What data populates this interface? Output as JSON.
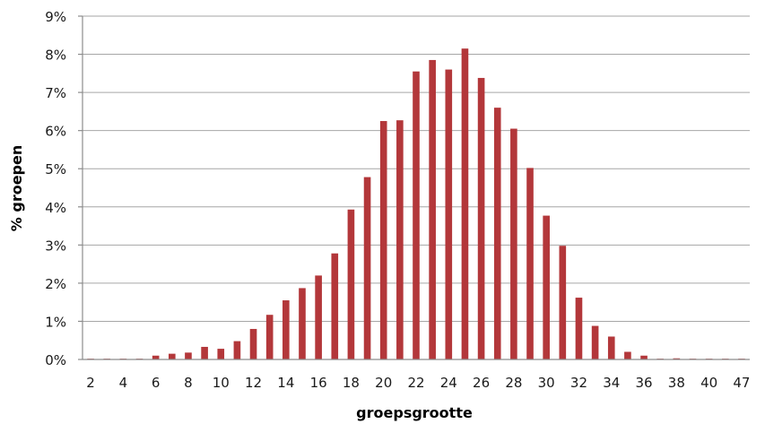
{
  "chart_data": {
    "type": "bar",
    "xlabel": "groepsgrootte",
    "ylabel": "% groepen",
    "ylim": [
      0,
      9
    ],
    "y_ticks": [
      "0%",
      "1%",
      "2%",
      "3%",
      "4%",
      "5%",
      "6%",
      "7%",
      "8%",
      "9%"
    ],
    "x_tick_labels": [
      "2",
      "4",
      "6",
      "8",
      "10",
      "12",
      "14",
      "16",
      "18",
      "20",
      "22",
      "24",
      "26",
      "28",
      "30",
      "32",
      "34",
      "36",
      "38",
      "40",
      "47"
    ],
    "categories": [
      "2",
      "3",
      "4",
      "5",
      "6",
      "7",
      "8",
      "9",
      "10",
      "11",
      "12",
      "13",
      "14",
      "15",
      "16",
      "17",
      "18",
      "19",
      "20",
      "21",
      "22",
      "23",
      "24",
      "25",
      "26",
      "27",
      "28",
      "29",
      "30",
      "31",
      "32",
      "33",
      "34",
      "35",
      "36",
      "37",
      "38",
      "39",
      "40",
      "41",
      "47"
    ],
    "values": [
      0.02,
      0.02,
      0.02,
      0.02,
      0.1,
      0.15,
      0.18,
      0.33,
      0.28,
      0.48,
      0.8,
      1.17,
      1.55,
      1.87,
      2.2,
      2.78,
      3.93,
      4.78,
      6.25,
      6.27,
      7.55,
      7.85,
      7.6,
      8.15,
      7.38,
      6.6,
      6.05,
      5.02,
      3.77,
      2.98,
      1.62,
      0.88,
      0.6,
      0.2,
      0.1,
      0.02,
      0.03,
      0.02,
      0.02,
      0.02,
      0.02
    ],
    "grid": true,
    "bar_color": "#b3373a",
    "legend": "none"
  }
}
